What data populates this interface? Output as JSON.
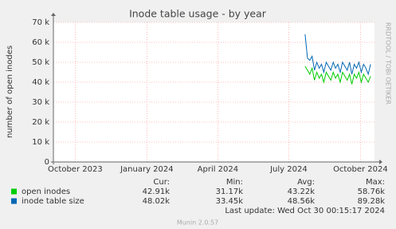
{
  "chart_data": {
    "type": "line",
    "title": "Inode table usage - by year",
    "y_label": "number of open inodes",
    "side_text": "RRDTOOL / TOBI OETIKER",
    "footer": "Munin 2.0.57",
    "last_update": "Last update: Wed Oct 30 00:15:17 2024",
    "xlim": [
      "2023-09-03",
      "2024-10-19"
    ],
    "xticks": [
      {
        "value": "2023-10-01",
        "label": "October 2023"
      },
      {
        "value": "2024-01-01",
        "label": "January 2024"
      },
      {
        "value": "2024-04-01",
        "label": "April 2024"
      },
      {
        "value": "2024-07-01",
        "label": "July 2024"
      },
      {
        "value": "2024-10-01",
        "label": "October 2024"
      }
    ],
    "ylim": [
      0,
      70000
    ],
    "yticks": [
      0,
      {
        "value": 10000,
        "label": "10 k"
      },
      {
        "value": 20000,
        "label": "20 k"
      },
      {
        "value": 30000,
        "label": "30 k"
      },
      {
        "value": 40000,
        "label": "40 k"
      },
      {
        "value": 50000,
        "label": "50 k"
      },
      {
        "value": 60000,
        "label": "60 k"
      },
      {
        "value": 70000,
        "label": "70 k"
      }
    ],
    "grid": true,
    "x": [
      "2024-07-22",
      "2024-07-25",
      "2024-07-28",
      "2024-07-31",
      "2024-08-03",
      "2024-08-06",
      "2024-08-09",
      "2024-08-12",
      "2024-08-15",
      "2024-08-18",
      "2024-08-21",
      "2024-08-24",
      "2024-08-27",
      "2024-08-30",
      "2024-09-02",
      "2024-09-05",
      "2024-09-08",
      "2024-09-11",
      "2024-09-14",
      "2024-09-17",
      "2024-09-20",
      "2024-09-23",
      "2024-09-26",
      "2024-09-29",
      "2024-10-02",
      "2024-10-05",
      "2024-10-08",
      "2024-10-11",
      "2024-10-14"
    ],
    "series": [
      {
        "name": "open inodes",
        "color": "#00cc00",
        "values": [
          48000,
          46000,
          44000,
          47000,
          41000,
          45000,
          42000,
          44000,
          40000,
          45000,
          43000,
          41000,
          45000,
          42000,
          44000,
          40000,
          45000,
          43000,
          41000,
          44000,
          39000,
          44000,
          42000,
          45000,
          40000,
          44000,
          42000,
          40000,
          43000
        ],
        "stats": [
          "42.91k",
          "31.17k",
          "43.22k",
          "58.76k"
        ]
      },
      {
        "name": "inode table size",
        "color": "#0066b3",
        "values": [
          64000,
          52000,
          51000,
          53000,
          46000,
          50000,
          47000,
          49000,
          45000,
          50000,
          48000,
          46000,
          50000,
          47000,
          49000,
          45000,
          50000,
          48000,
          46000,
          50000,
          44000,
          49000,
          47000,
          50000,
          45000,
          49000,
          47000,
          44000,
          49000
        ],
        "stats": [
          "48.02k",
          "33.45k",
          "48.56k",
          "89.28k"
        ]
      }
    ],
    "stat_headers": [
      "Cur:",
      "Min:",
      "Avg:",
      "Max:"
    ]
  }
}
